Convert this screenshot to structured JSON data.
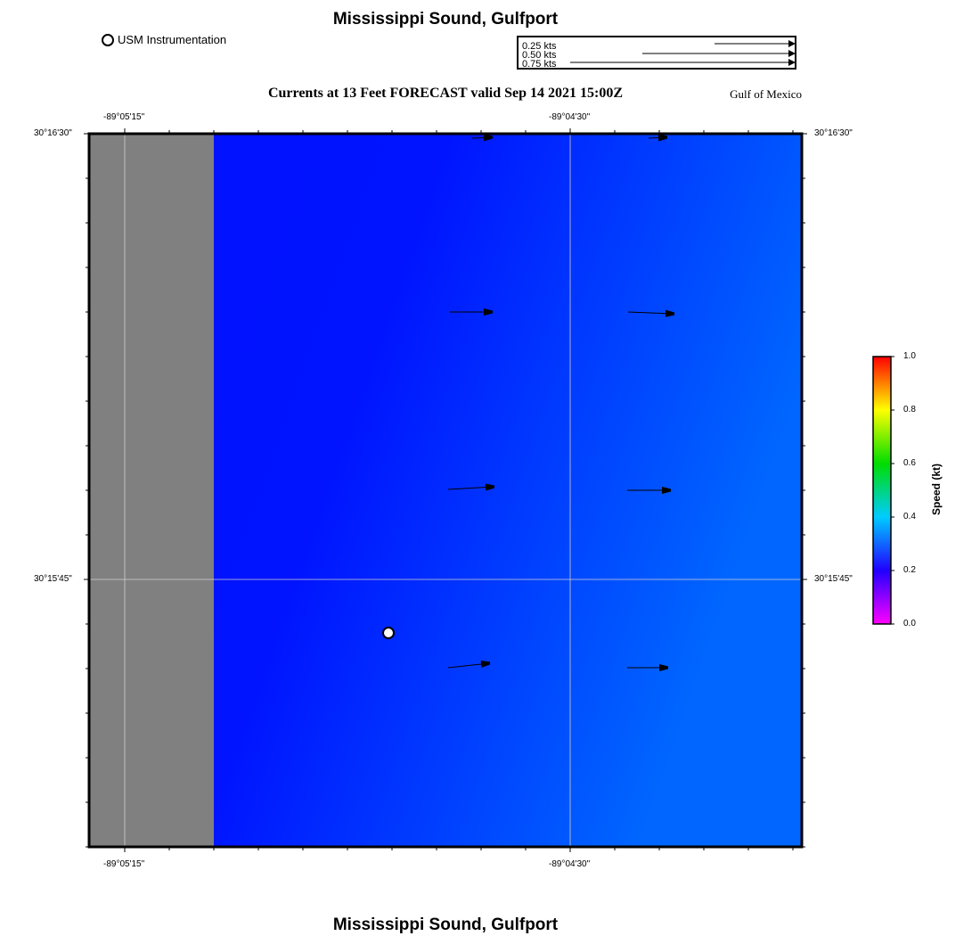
{
  "header": {
    "title": "Mississippi Sound, Gulfport",
    "forecast_title": "Currents at 13 Feet FORECAST valid Sep 14 2021 15:00Z",
    "region_label": "Gulf of Mexico",
    "station_legend": "USM Instrumentation"
  },
  "footer": {
    "title": "Mississippi Sound, Gulfport"
  },
  "scale_legend": {
    "items": [
      {
        "label": "0.25 kts",
        "speed_kt": 0.25
      },
      {
        "label": "0.50 kts",
        "speed_kt": 0.5
      },
      {
        "label": "0.75 kts",
        "speed_kt": 0.75
      }
    ]
  },
  "axes": {
    "lon_ticks": [
      "-89°05'15\"",
      "-89°04'30\""
    ],
    "lat_ticks": [
      "30°16'30\"",
      "30°15'45\""
    ]
  },
  "colorbar": {
    "title": "Speed (kt)",
    "ticks": [
      "1.0",
      "0.8",
      "0.6",
      "0.4",
      "0.2",
      "0.0"
    ]
  },
  "colors": {
    "land": "#808080",
    "water_low": "#0010ff",
    "water_high": "#0066ff",
    "arrow": "#000000",
    "grid": "#cccccc"
  }
}
